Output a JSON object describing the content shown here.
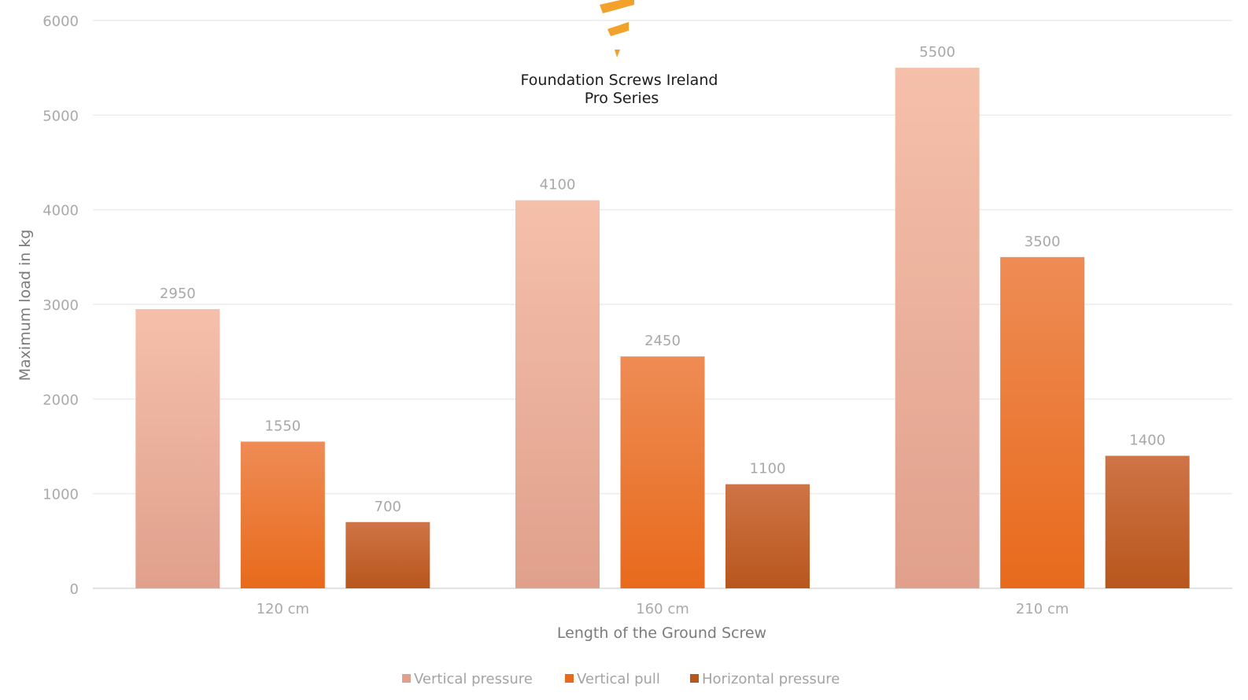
{
  "brand": {
    "line1": "Foundation Screws Ireland",
    "line2": "Pro Series",
    "logo_icon": "screw-logo-icon",
    "logo_color": "#f2a12a"
  },
  "chart_data": {
    "type": "bar",
    "categories": [
      "120 cm",
      "160 cm",
      "210 cm"
    ],
    "series": [
      {
        "name": "Vertical pressure",
        "values": [
          2950,
          4100,
          5500
        ],
        "color_top": "#f5c0aa",
        "color_bottom": "#e0a08c"
      },
      {
        "name": "Vertical pull",
        "values": [
          1550,
          2450,
          3500
        ],
        "color_top": "#ee8c55",
        "color_bottom": "#e86a1c"
      },
      {
        "name": "Horizontal pressure",
        "values": [
          700,
          1100,
          1400
        ],
        "color_top": "#cf7447",
        "color_bottom": "#b8561c"
      }
    ],
    "xlabel": "Length of the Ground Screw",
    "ylabel": "Maximum load in kg",
    "ylim": [
      0,
      6000
    ],
    "yticks": [
      0,
      1000,
      2000,
      3000,
      4000,
      5000,
      6000
    ],
    "grid": true,
    "legend_position": "bottom",
    "data_labels": true
  }
}
